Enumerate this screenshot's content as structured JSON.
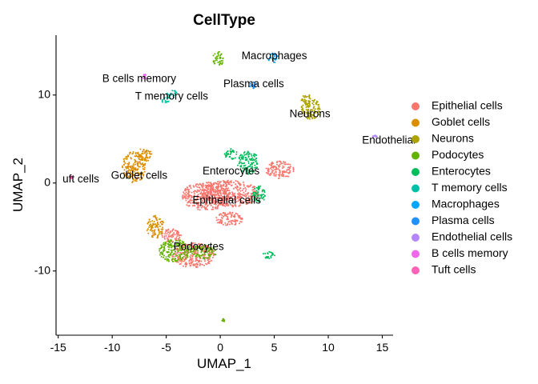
{
  "chart_data": {
    "type": "scatter",
    "title": "CellType",
    "xlabel": "UMAP_1",
    "ylabel": "UMAP_2",
    "xlim": [
      -15.2,
      16.0
    ],
    "ylim": [
      -17.3,
      16.8
    ],
    "xticks": [
      -15,
      -10,
      -5,
      0,
      5,
      10,
      15
    ],
    "yticks": [
      -10,
      0,
      10
    ],
    "grid": false,
    "legend_position": "right",
    "series": [
      {
        "name": "Epithelial cells",
        "color": "#F8766D",
        "clusters": [
          {
            "cx": 1.0,
            "cy": -1.2,
            "rx": 2.8,
            "ry": 1.5
          },
          {
            "cx": -1.3,
            "cy": -1.5,
            "rx": 2.3,
            "ry": 1.6
          },
          {
            "cx": 5.5,
            "cy": 1.5,
            "rx": 1.3,
            "ry": 1.0
          },
          {
            "cx": -2.5,
            "cy": -8.2,
            "rx": 2.0,
            "ry": 1.4
          },
          {
            "cx": 0.8,
            "cy": -4.1,
            "rx": 1.3,
            "ry": 0.8
          },
          {
            "cx": -4.5,
            "cy": -6.0,
            "rx": 0.9,
            "ry": 0.8
          }
        ],
        "label": "Epithelial cells",
        "label_pos": [
          0.6,
          -2.0
        ]
      },
      {
        "name": "Goblet cells",
        "color": "#DB8E00",
        "clusters": [
          {
            "cx": -8.0,
            "cy": 1.8,
            "rx": 1.1,
            "ry": 1.8
          },
          {
            "cx": -7.0,
            "cy": 3.2,
            "rx": 0.7,
            "ry": 0.8
          },
          {
            "cx": -6.0,
            "cy": -5.0,
            "rx": 0.8,
            "ry": 1.3
          }
        ],
        "label": "Goblet cells",
        "label_pos": [
          -7.5,
          0.8
        ]
      },
      {
        "name": "Neurons",
        "color": "#AEA200",
        "clusters": [
          {
            "cx": 8.4,
            "cy": 8.4,
            "rx": 0.9,
            "ry": 1.2
          },
          {
            "cx": 8.0,
            "cy": 9.5,
            "rx": 0.5,
            "ry": 0.6
          }
        ],
        "label": "Neurons",
        "label_pos": [
          8.3,
          7.8
        ]
      },
      {
        "name": "Podocytes",
        "color": "#64B200",
        "clusters": [
          {
            "cx": -4.2,
            "cy": -7.7,
            "rx": 1.5,
            "ry": 1.3
          },
          {
            "cx": -1.5,
            "cy": -7.8,
            "rx": 1.2,
            "ry": 0.8
          },
          {
            "cx": -0.2,
            "cy": 14.1,
            "rx": 0.5,
            "ry": 0.9
          },
          {
            "cx": 0.3,
            "cy": -15.6,
            "rx": 0.15,
            "ry": 0.2
          }
        ],
        "label": "Podocytes",
        "label_pos": [
          -2.0,
          -7.3
        ]
      },
      {
        "name": "Enterocytes",
        "color": "#00BD5C",
        "clusters": [
          {
            "cx": 2.6,
            "cy": 2.3,
            "rx": 1.0,
            "ry": 1.3
          },
          {
            "cx": 1.0,
            "cy": 3.3,
            "rx": 0.6,
            "ry": 0.6
          },
          {
            "cx": 3.6,
            "cy": -1.3,
            "rx": 0.6,
            "ry": 1.0
          },
          {
            "cx": 4.5,
            "cy": -8.2,
            "rx": 0.6,
            "ry": 0.4
          }
        ],
        "label": "Enterocytes",
        "label_pos": [
          1.0,
          1.3
        ]
      },
      {
        "name": "T memory cells",
        "color": "#00C1A7",
        "clusters": [
          {
            "cx": -4.5,
            "cy": 10.1,
            "rx": 0.5,
            "ry": 0.5
          },
          {
            "cx": -5.0,
            "cy": 9.4,
            "rx": 0.4,
            "ry": 0.4
          }
        ],
        "label": "T memory cells",
        "label_pos": [
          -4.5,
          9.8
        ]
      },
      {
        "name": "Macrophages",
        "color": "#00A6FF",
        "clusters": [
          {
            "cx": 4.9,
            "cy": 14.2,
            "rx": 0.5,
            "ry": 0.6
          }
        ],
        "label": "Macrophages",
        "label_pos": [
          5.0,
          14.4
        ]
      },
      {
        "name": "Plasma cells",
        "color": "#1E90FF",
        "clusters": [
          {
            "cx": 3.1,
            "cy": 11.1,
            "rx": 0.4,
            "ry": 0.4
          }
        ],
        "label": "Plasma cells",
        "label_pos": [
          3.1,
          11.2
        ]
      },
      {
        "name": "Endothelial cells",
        "color": "#B385FF",
        "clusters": [
          {
            "cx": 14.3,
            "cy": 5.3,
            "rx": 0.2,
            "ry": 0.15
          }
        ],
        "label": "Endothelial",
        "label_pos": [
          15.6,
          4.8
        ]
      },
      {
        "name": "B cells memory",
        "color": "#EF67EB",
        "clusters": [
          {
            "cx": -7.0,
            "cy": 12.1,
            "rx": 0.25,
            "ry": 0.25
          }
        ],
        "label": "B cells memory",
        "label_pos": [
          -7.5,
          11.8
        ]
      },
      {
        "name": "Tuft cells",
        "color": "#FF63B6",
        "clusters": [
          {
            "cx": -13.8,
            "cy": 0.6,
            "rx": 0.15,
            "ry": 0.15
          }
        ],
        "label": "uft cells",
        "label_pos": [
          -12.9,
          0.4
        ]
      }
    ]
  }
}
